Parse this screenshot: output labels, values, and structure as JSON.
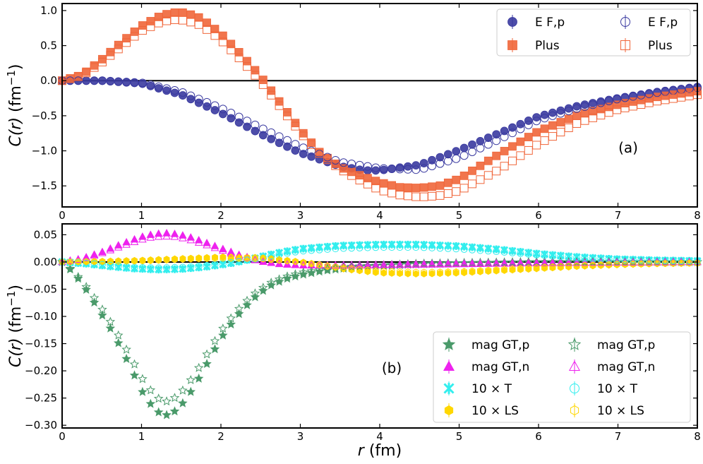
{
  "figure": {
    "xlabel_italic": "r",
    "xlabel_unit": " (fm)"
  },
  "chart_data": [
    {
      "type": "scatter",
      "panel_label": "(a)",
      "ylabel_italic": "C(r)",
      "ylabel_unit": " (fm",
      "ylabel_exp": "−1",
      "ylabel_close": ")",
      "xlim": [
        0,
        8
      ],
      "ylim": [
        -1.8,
        1.1
      ],
      "xticks": [
        0,
        1,
        2,
        3,
        4,
        5,
        6,
        7,
        8
      ],
      "xtick_labels": [
        "0",
        "1",
        "2",
        "3",
        "4",
        "5",
        "6",
        "7",
        "8"
      ],
      "yticks": [
        1.0,
        0.5,
        0.0,
        -0.5,
        -1.0,
        -1.5
      ],
      "ytick_labels": [
        "1.0",
        "0.5",
        "0.0",
        "−0.5",
        "−1.0",
        "−1.5"
      ],
      "legend_position": "top-right",
      "legend_columns": 2,
      "series": [
        {
          "name": "E F,p",
          "marker": "circle",
          "fill": true,
          "color": "#3a3aa0",
          "x": [
            0,
            0.5,
            1.0,
            1.5,
            2.0,
            2.5,
            3.0,
            3.5,
            3.8,
            4.0,
            4.5,
            5.0,
            5.5,
            6.0,
            6.5,
            7.0,
            7.5,
            8.0
          ],
          "y": [
            0,
            0,
            -0.04,
            -0.2,
            -0.46,
            -0.76,
            -1.03,
            -1.22,
            -1.28,
            -1.28,
            -1.2,
            -0.99,
            -0.75,
            -0.51,
            -0.36,
            -0.25,
            -0.16,
            -0.09
          ]
        },
        {
          "name": "Plus",
          "marker": "square",
          "fill": true,
          "color": "#f0663a",
          "x": [
            0,
            0.25,
            0.5,
            0.75,
            1.0,
            1.25,
            1.4,
            1.55,
            1.75,
            2.0,
            2.25,
            2.5,
            2.75,
            3.0,
            3.25,
            3.5,
            3.75,
            4.0,
            4.25,
            4.5,
            4.75,
            5.0,
            5.5,
            6.0,
            6.5,
            7.0,
            7.5,
            8.0
          ],
          "y": [
            0,
            0.08,
            0.3,
            0.55,
            0.78,
            0.93,
            0.97,
            0.97,
            0.89,
            0.67,
            0.38,
            0.06,
            -0.32,
            -0.7,
            -1.03,
            -1.23,
            -1.35,
            -1.45,
            -1.52,
            -1.53,
            -1.5,
            -1.4,
            -1.05,
            -0.72,
            -0.49,
            -0.34,
            -0.23,
            -0.15
          ]
        },
        {
          "name": "E F,p",
          "marker": "circle",
          "fill": false,
          "color": "#3a3aa0",
          "x": [
            0,
            0.5,
            1.0,
            1.5,
            2.0,
            2.5,
            3.0,
            3.5,
            4.0,
            4.5,
            5.0,
            5.5,
            6.0,
            6.5,
            7.0,
            7.5,
            8.0
          ],
          "y": [
            0,
            0,
            -0.03,
            -0.16,
            -0.39,
            -0.67,
            -0.94,
            -1.16,
            -1.25,
            -1.27,
            -1.1,
            -0.84,
            -0.56,
            -0.39,
            -0.26,
            -0.17,
            -0.1
          ]
        },
        {
          "name": "Plus",
          "marker": "square",
          "fill": false,
          "color": "#f0663a",
          "x": [
            0,
            0.25,
            0.5,
            0.75,
            1.0,
            1.25,
            1.4,
            1.55,
            1.75,
            2.0,
            2.25,
            2.5,
            2.75,
            3.0,
            3.25,
            3.5,
            3.75,
            4.0,
            4.25,
            4.5,
            4.75,
            5.0,
            5.5,
            6.0,
            6.5,
            7.0,
            7.5,
            8.0
          ],
          "y": [
            0,
            0.07,
            0.26,
            0.49,
            0.71,
            0.84,
            0.87,
            0.86,
            0.79,
            0.58,
            0.3,
            -0.01,
            -0.38,
            -0.74,
            -1.05,
            -1.26,
            -1.42,
            -1.56,
            -1.63,
            -1.66,
            -1.64,
            -1.57,
            -1.27,
            -0.9,
            -0.6,
            -0.41,
            -0.29,
            -0.2
          ]
        }
      ]
    },
    {
      "type": "scatter",
      "panel_label": "(b)",
      "ylabel_italic": "C(r)",
      "ylabel_unit": " (fm",
      "ylabel_exp": "−1",
      "ylabel_close": ")",
      "xlim": [
        0,
        8
      ],
      "ylim": [
        -0.305,
        0.07
      ],
      "xticks": [
        0,
        1,
        2,
        3,
        4,
        5,
        6,
        7,
        8
      ],
      "xtick_labels": [
        "0",
        "1",
        "2",
        "3",
        "4",
        "5",
        "6",
        "7",
        "8"
      ],
      "yticks": [
        0.05,
        0.0,
        -0.05,
        -0.1,
        -0.15,
        -0.2,
        -0.25,
        -0.3
      ],
      "ytick_labels": [
        "0.05",
        "0.00",
        "−0.05",
        "−0.10",
        "−0.15",
        "−0.20",
        "−0.25",
        "−0.30"
      ],
      "legend_position": "bottom-right",
      "legend_columns": 2,
      "series": [
        {
          "name": "mag GT,p",
          "marker": "star",
          "fill": true,
          "color": "#4a9a6a",
          "x": [
            0,
            0.15,
            0.3,
            0.45,
            0.6,
            0.75,
            0.9,
            1.05,
            1.2,
            1.3,
            1.4,
            1.55,
            1.7,
            1.85,
            2.0,
            2.2,
            2.4,
            2.6,
            2.8,
            3.0,
            3.3,
            3.6,
            4.0,
            4.5,
            5.0,
            5.5,
            6.0,
            7.0,
            8.0
          ],
          "y": [
            0,
            -0.02,
            -0.05,
            -0.085,
            -0.12,
            -0.16,
            -0.205,
            -0.25,
            -0.275,
            -0.282,
            -0.277,
            -0.255,
            -0.22,
            -0.18,
            -0.14,
            -0.1,
            -0.068,
            -0.045,
            -0.032,
            -0.024,
            -0.016,
            -0.011,
            -0.007,
            -0.004,
            -0.002,
            -0.001,
            0,
            0,
            0
          ]
        },
        {
          "name": "mag GT,n",
          "marker": "triangle",
          "fill": true,
          "color": "#ee22ee",
          "x": [
            0,
            0.25,
            0.5,
            0.75,
            1.0,
            1.15,
            1.3,
            1.45,
            1.6,
            1.8,
            2.0,
            2.25,
            2.5,
            2.75,
            3.0,
            3.5,
            4.0,
            4.5,
            5.0,
            6.0,
            7.0,
            8.0
          ],
          "y": [
            0,
            0.006,
            0.018,
            0.033,
            0.046,
            0.051,
            0.053,
            0.051,
            0.046,
            0.036,
            0.025,
            0.012,
            0.002,
            -0.004,
            -0.006,
            -0.007,
            -0.006,
            -0.005,
            -0.004,
            -0.002,
            -0.001,
            0
          ]
        },
        {
          "name": "10 × T",
          "marker": "x",
          "fill": true,
          "color": "#33eeee",
          "x": [
            0,
            0.3,
            0.6,
            0.9,
            1.2,
            1.5,
            1.8,
            2.1,
            2.4,
            2.7,
            3.0,
            3.5,
            4.0,
            4.5,
            5.0,
            5.5,
            6.0,
            6.5,
            7.0,
            7.5,
            8.0
          ],
          "y": [
            0,
            -0.003,
            -0.008,
            -0.012,
            -0.014,
            -0.013,
            -0.009,
            -0.003,
            0.006,
            0.016,
            0.024,
            0.03,
            0.032,
            0.032,
            0.029,
            0.023,
            0.015,
            0.009,
            0.005,
            0.003,
            0.002
          ]
        },
        {
          "name": "10 × LS",
          "marker": "hexagon",
          "fill": true,
          "color": "#ffd700",
          "x": [
            0,
            0.5,
            1.0,
            1.5,
            2.0,
            2.5,
            3.0,
            3.5,
            4.0,
            4.5,
            5.0,
            5.5,
            6.0,
            6.5,
            7.0,
            7.5,
            8.0
          ],
          "y": [
            0,
            0.001,
            0.003,
            0.006,
            0.009,
            0.008,
            0,
            -0.012,
            -0.02,
            -0.022,
            -0.02,
            -0.016,
            -0.012,
            -0.008,
            -0.005,
            -0.003,
            -0.002
          ]
        },
        {
          "name": "mag GT,p",
          "marker": "star",
          "fill": false,
          "color": "#4a9a6a",
          "x": [
            0,
            0.15,
            0.3,
            0.45,
            0.6,
            0.75,
            0.9,
            1.05,
            1.2,
            1.3,
            1.4,
            1.55,
            1.7,
            1.85,
            2.0,
            2.2,
            2.4,
            2.6,
            2.8,
            3.0,
            3.3,
            3.6,
            4.0,
            4.5,
            5.0,
            5.5,
            6.0,
            7.0,
            8.0
          ],
          "y": [
            0,
            -0.018,
            -0.045,
            -0.075,
            -0.108,
            -0.145,
            -0.185,
            -0.225,
            -0.25,
            -0.257,
            -0.252,
            -0.232,
            -0.2,
            -0.163,
            -0.127,
            -0.09,
            -0.061,
            -0.04,
            -0.028,
            -0.02,
            -0.013,
            -0.009,
            -0.006,
            -0.003,
            -0.002,
            -0.001,
            0,
            0,
            0
          ]
        },
        {
          "name": "mag GT,n",
          "marker": "triangle",
          "fill": false,
          "color": "#ee22ee",
          "x": [
            0,
            0.25,
            0.5,
            0.75,
            1.0,
            1.15,
            1.3,
            1.45,
            1.6,
            1.8,
            2.0,
            2.25,
            2.5,
            2.75,
            3.0,
            3.5,
            4.0,
            4.5,
            5.0,
            6.0,
            7.0,
            8.0
          ],
          "y": [
            0,
            0.005,
            0.016,
            0.029,
            0.041,
            0.046,
            0.047,
            0.046,
            0.041,
            0.032,
            0.022,
            0.01,
            0.001,
            -0.004,
            -0.006,
            -0.006,
            -0.005,
            -0.004,
            -0.003,
            -0.002,
            -0.001,
            0
          ]
        },
        {
          "name": "10 × T",
          "marker": "circle",
          "fill": false,
          "color": "#33eeee",
          "x": [
            0,
            0.3,
            0.6,
            0.9,
            1.2,
            1.5,
            1.8,
            2.1,
            2.4,
            2.7,
            3.0,
            3.5,
            4.0,
            4.5,
            5.0,
            5.5,
            6.0,
            6.5,
            7.0,
            7.5,
            8.0
          ],
          "y": [
            0,
            -0.002,
            -0.006,
            -0.01,
            -0.011,
            -0.01,
            -0.007,
            -0.002,
            0.005,
            0.013,
            0.02,
            0.025,
            0.027,
            0.027,
            0.024,
            0.019,
            0.013,
            0.008,
            0.005,
            0.003,
            0.002
          ]
        },
        {
          "name": "10 × LS",
          "marker": "hexagon",
          "fill": false,
          "color": "#ffd700",
          "x": [
            0,
            0.5,
            1.0,
            1.5,
            2.0,
            2.5,
            3.0,
            3.5,
            4.0,
            4.5,
            5.0,
            5.5,
            6.0,
            6.5,
            7.0,
            7.5,
            8.0
          ],
          "y": [
            0,
            0.001,
            0.002,
            0.005,
            0.007,
            0.006,
            0,
            -0.01,
            -0.017,
            -0.019,
            -0.018,
            -0.014,
            -0.01,
            -0.007,
            -0.004,
            -0.003,
            -0.002
          ]
        }
      ]
    }
  ]
}
